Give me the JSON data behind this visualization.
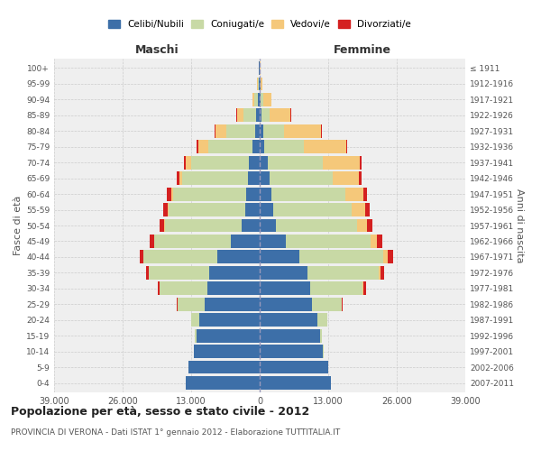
{
  "age_groups": [
    "0-4",
    "5-9",
    "10-14",
    "15-19",
    "20-24",
    "25-29",
    "30-34",
    "35-39",
    "40-44",
    "45-49",
    "50-54",
    "55-59",
    "60-64",
    "65-69",
    "70-74",
    "75-79",
    "80-84",
    "85-89",
    "90-94",
    "95-99",
    "100+"
  ],
  "birth_years": [
    "2007-2011",
    "2002-2006",
    "1997-2001",
    "1992-1996",
    "1987-1991",
    "1982-1986",
    "1977-1981",
    "1972-1976",
    "1967-1971",
    "1962-1966",
    "1957-1961",
    "1952-1956",
    "1947-1951",
    "1942-1946",
    "1937-1941",
    "1932-1936",
    "1927-1931",
    "1922-1926",
    "1917-1921",
    "1912-1916",
    "≤ 1911"
  ],
  "maschi_celibe": [
    14000,
    13500,
    12500,
    12000,
    11500,
    10500,
    10000,
    9500,
    8000,
    5500,
    3500,
    2800,
    2500,
    2200,
    2000,
    1300,
    900,
    600,
    400,
    200,
    100
  ],
  "maschi_coniugato": [
    5,
    10,
    50,
    300,
    1500,
    5000,
    9000,
    11500,
    14000,
    14500,
    14500,
    14500,
    14000,
    12500,
    11000,
    8500,
    5500,
    2500,
    600,
    150,
    50
  ],
  "maschi_vedovo": [
    0,
    0,
    1,
    2,
    3,
    5,
    10,
    15,
    30,
    50,
    100,
    150,
    300,
    500,
    1000,
    1800,
    2000,
    1200,
    400,
    100,
    30
  ],
  "maschi_divorziato": [
    1,
    2,
    5,
    15,
    50,
    150,
    350,
    500,
    700,
    800,
    900,
    900,
    800,
    600,
    400,
    350,
    150,
    80,
    30,
    10,
    5
  ],
  "femmine_celibe": [
    13500,
    13000,
    12000,
    11500,
    11000,
    10000,
    9500,
    9000,
    7500,
    5000,
    3000,
    2500,
    2200,
    1800,
    1500,
    900,
    600,
    400,
    250,
    100,
    50
  ],
  "femmine_coniugato": [
    5,
    10,
    60,
    350,
    1800,
    5500,
    10000,
    13500,
    16000,
    16000,
    15500,
    15000,
    14000,
    12000,
    10500,
    7500,
    4000,
    1500,
    400,
    100,
    30
  ],
  "femmine_vedovo": [
    1,
    2,
    5,
    15,
    40,
    100,
    200,
    400,
    800,
    1200,
    1800,
    2500,
    3500,
    5000,
    7000,
    8000,
    7000,
    4000,
    1500,
    350,
    80
  ],
  "femmine_divorziato": [
    1,
    2,
    5,
    15,
    60,
    200,
    450,
    700,
    950,
    1100,
    1100,
    900,
    700,
    500,
    350,
    200,
    150,
    80,
    30,
    10,
    5
  ],
  "colors": {
    "celibe": "#3d6fa8",
    "coniugato": "#c8d9a5",
    "vedovo": "#f5c87a",
    "divorziato": "#d42020"
  },
  "xlim": [
    -39000,
    39000
  ],
  "xticks": [
    -39000,
    -26000,
    -13000,
    0,
    13000,
    26000,
    39000
  ],
  "xtick_labels": [
    "39.000",
    "26.000",
    "13.000",
    "0",
    "13.000",
    "26.000",
    "39.000"
  ],
  "title": "Popolazione per età, sesso e stato civile - 2012",
  "subtitle": "PROVINCIA DI VERONA - Dati ISTAT 1° gennaio 2012 - Elaborazione TUTTITALIA.IT",
  "ylabel_left": "Fasce di età",
  "ylabel_right": "Anni di nascita",
  "label_maschi": "Maschi",
  "label_femmine": "Femmine",
  "legend_labels": [
    "Celibi/Nubili",
    "Coniugati/e",
    "Vedovi/e",
    "Divorziati/e"
  ],
  "bg_color": "#ffffff",
  "plot_bg_color": "#efefef"
}
